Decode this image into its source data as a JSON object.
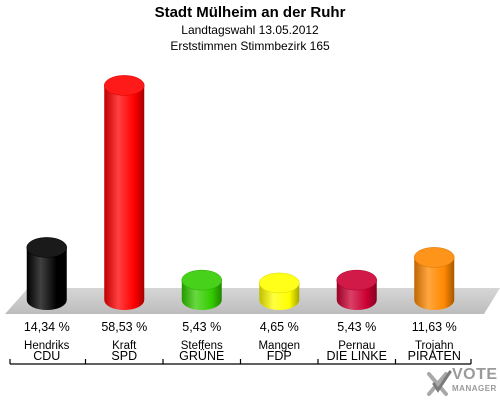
{
  "header": {
    "title": "Stadt Mülheim an der Ruhr",
    "subtitle1": "Landtagswahl 13.05.2012",
    "subtitle2": "Erststimmen Stimmbezirk 165"
  },
  "logo": {
    "line1": "VOTE",
    "line2": "MANAGER",
    "icon": "checkmark-x-logo-icon"
  },
  "chart_data": {
    "type": "bar",
    "title": "Stadt Mülheim an der Ruhr",
    "subtitle": [
      "Landtagswahl 13.05.2012",
      "Erststimmen Stimmbezirk 165"
    ],
    "xlabel": "",
    "ylabel": "",
    "ylim": [
      0,
      60
    ],
    "grid": false,
    "legend": "none",
    "categories": [
      "CDU",
      "SPD",
      "GRÜNE",
      "FDP",
      "DIE LINKE",
      "PIRATEN"
    ],
    "candidates": [
      "Hendriks",
      "Kraft",
      "Steffens",
      "Mangen",
      "Pernau",
      "Trojahn"
    ],
    "values": [
      14.34,
      58.53,
      5.43,
      4.65,
      5.43,
      11.63
    ],
    "value_labels": [
      "14,34 %",
      "58,53 %",
      "5,43 %",
      "4,65 %",
      "5,43 %",
      "11,63 %"
    ],
    "colors": [
      "#000000",
      "#ff0000",
      "#33cc00",
      "#ffff00",
      "#cc0033",
      "#ff8800"
    ]
  }
}
